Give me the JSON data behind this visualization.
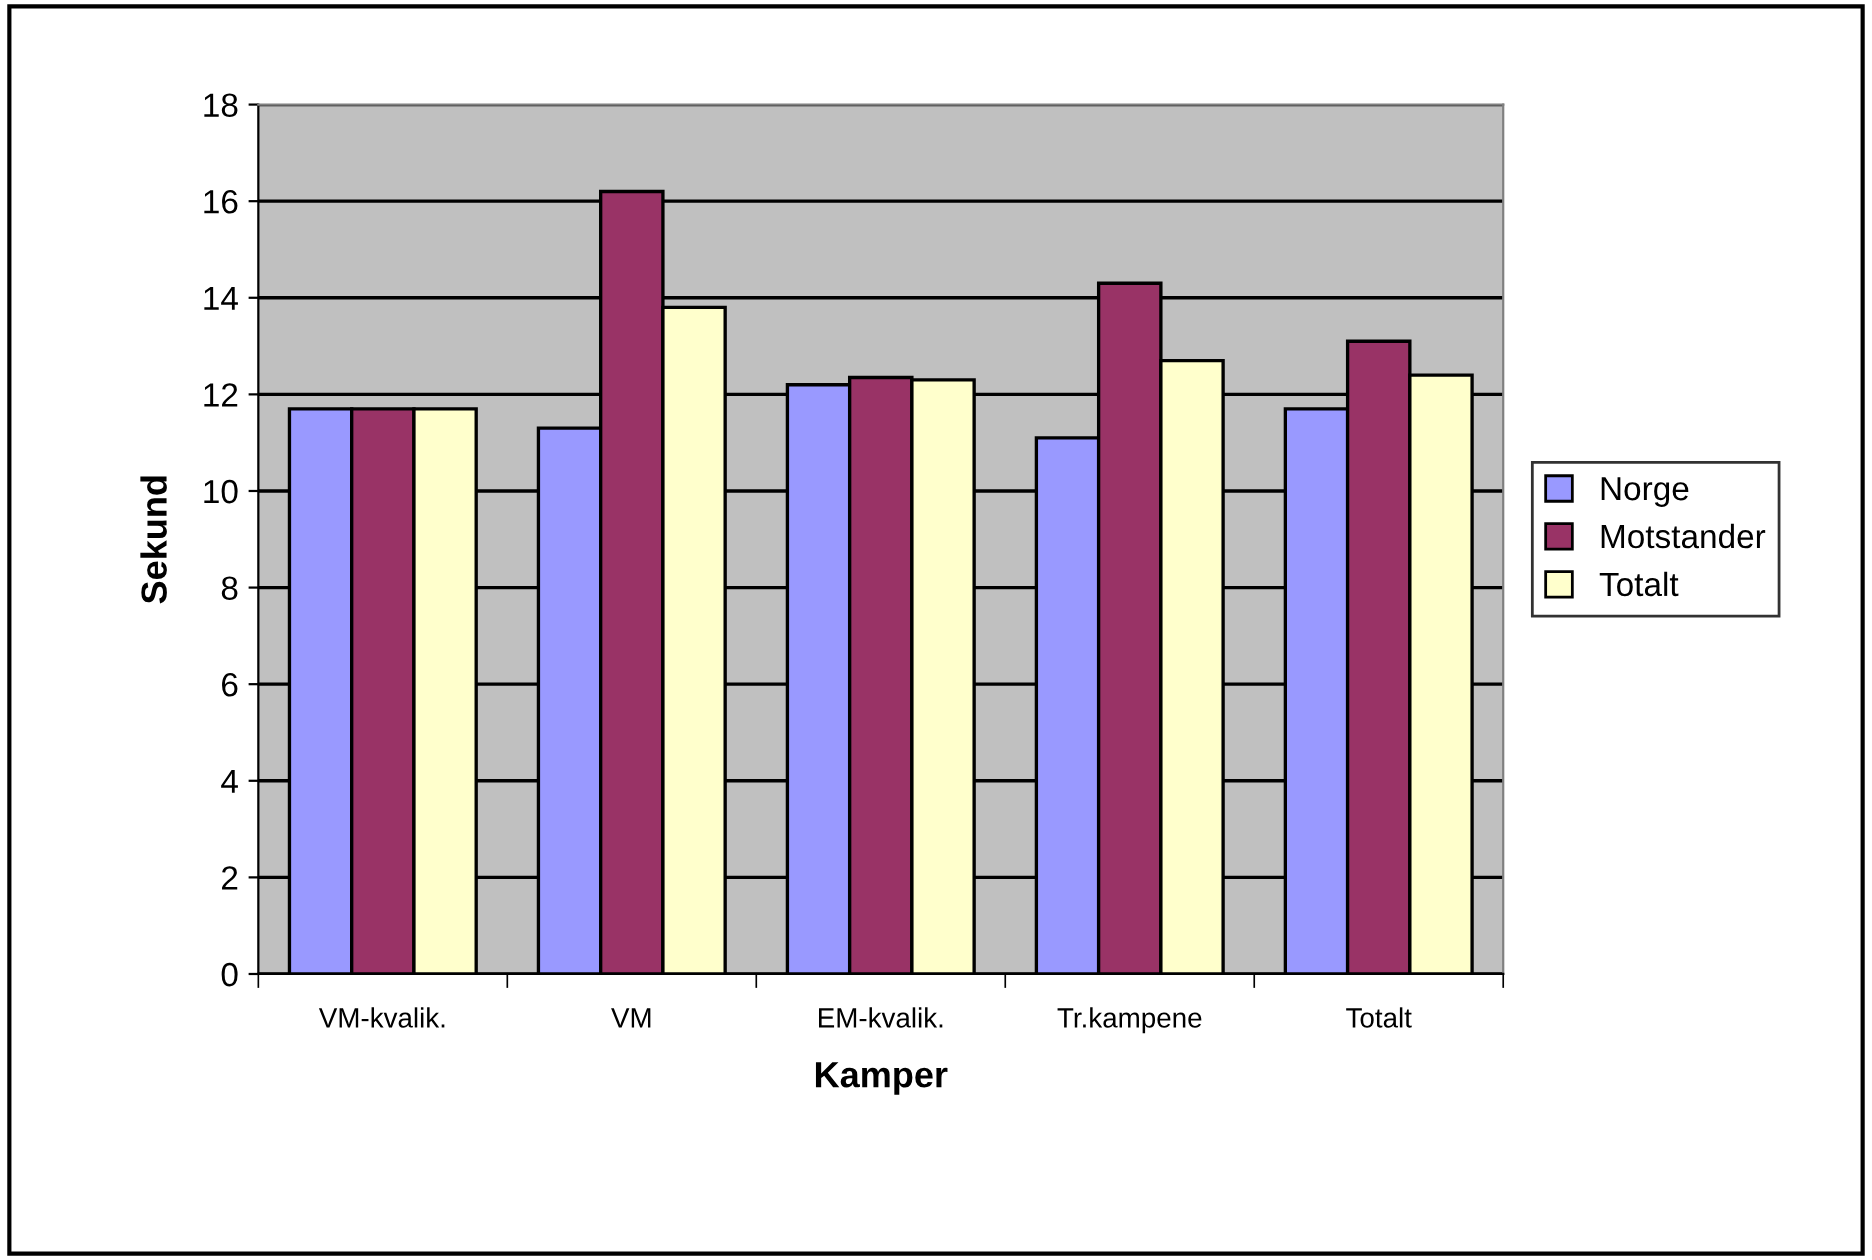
{
  "chart_data": {
    "type": "bar",
    "xlabel": "Kamper",
    "ylabel": "Sekund",
    "categories": [
      "VM-kvalik.",
      "VM",
      "EM-kvalik.",
      "Tr.kampene",
      "Totalt"
    ],
    "series": [
      {
        "name": "Norge",
        "color": "#9999ff",
        "values": [
          11.7,
          11.3,
          12.2,
          11.1,
          11.7
        ]
      },
      {
        "name": "Motstander",
        "color": "#993366",
        "values": [
          11.7,
          16.2,
          12.35,
          14.3,
          13.1
        ]
      },
      {
        "name": "Totalt",
        "color": "#ffffcc",
        "values": [
          11.7,
          13.8,
          12.3,
          12.7,
          12.4
        ]
      }
    ],
    "ylim": [
      0,
      18
    ],
    "yticks": [
      0,
      2,
      4,
      6,
      8,
      10,
      12,
      14,
      16,
      18
    ],
    "grid": "y",
    "legend": "right"
  }
}
